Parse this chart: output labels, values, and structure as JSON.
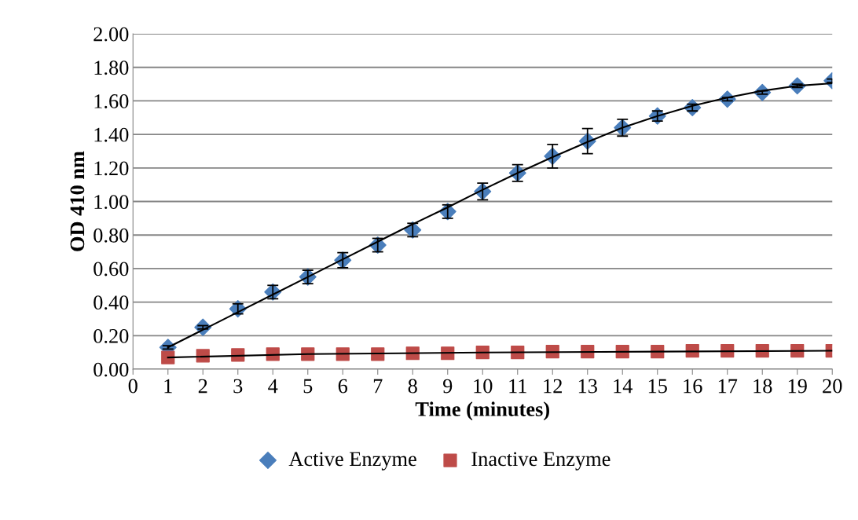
{
  "chart_data": {
    "type": "scatter",
    "xlabel": "Time (minutes)",
    "ylabel": "OD 410 nm",
    "x": [
      1,
      2,
      3,
      4,
      5,
      6,
      7,
      8,
      9,
      10,
      11,
      12,
      13,
      14,
      15,
      16,
      17,
      18,
      19,
      20
    ],
    "series": [
      {
        "name": "Active Enzyme",
        "color": "#4a7ebb",
        "marker": "diamond",
        "values": [
          0.13,
          0.25,
          0.36,
          0.46,
          0.55,
          0.65,
          0.74,
          0.83,
          0.94,
          1.06,
          1.17,
          1.27,
          1.36,
          1.44,
          1.51,
          1.56,
          1.61,
          1.65,
          1.69,
          1.72
        ],
        "errors": [
          0.01,
          0.01,
          0.03,
          0.04,
          0.04,
          0.045,
          0.04,
          0.04,
          0.04,
          0.05,
          0.05,
          0.07,
          0.075,
          0.05,
          0.03,
          0.02,
          0.01,
          0.01,
          0.01,
          0.01
        ]
      },
      {
        "name": "Inactive Enzyme",
        "color": "#be4b48",
        "marker": "square",
        "values": [
          0.07,
          0.08,
          0.085,
          0.09,
          0.09,
          0.09,
          0.09,
          0.095,
          0.095,
          0.1,
          0.1,
          0.105,
          0.105,
          0.105,
          0.105,
          0.11,
          0.11,
          0.11,
          0.11,
          0.11
        ]
      },
      {
        "type": "line",
        "color": "#000000",
        "x": [
          1,
          2,
          3,
          4,
          5,
          6,
          7,
          8,
          9,
          10,
          11,
          12,
          13,
          14,
          15,
          16,
          17,
          18,
          19,
          20
        ],
        "values": [
          0.13,
          0.235,
          0.34,
          0.445,
          0.55,
          0.655,
          0.76,
          0.865,
          0.965,
          1.07,
          1.17,
          1.265,
          1.355,
          1.44,
          1.51,
          1.57,
          1.62,
          1.66,
          1.69,
          1.705
        ]
      },
      {
        "type": "line",
        "color": "#000000",
        "x": [
          1,
          5,
          10,
          15,
          20
        ],
        "values": [
          0.07,
          0.09,
          0.1,
          0.105,
          0.11
        ]
      }
    ],
    "xlim": [
      0,
      20
    ],
    "xticks": [
      0,
      1,
      2,
      3,
      4,
      5,
      6,
      7,
      8,
      9,
      10,
      11,
      12,
      13,
      14,
      15,
      16,
      17,
      18,
      19,
      20
    ],
    "ylim": [
      0,
      2
    ],
    "yticks": [
      {
        "value": 0,
        "label": "0.00"
      },
      {
        "value": 0.2,
        "label": "0.20"
      },
      {
        "value": 0.4,
        "label": "0.40"
      },
      {
        "value": 0.6,
        "label": "0.60"
      },
      {
        "value": 0.8,
        "label": "0.80"
      },
      {
        "value": 1.0,
        "label": "1.00"
      },
      {
        "value": 1.2,
        "label": "1.20"
      },
      {
        "value": 1.4,
        "label": "1.40"
      },
      {
        "value": 1.6,
        "label": "1.60"
      },
      {
        "value": 1.8,
        "label": "1.80"
      },
      {
        "value": 2.0,
        "label": "2.00"
      }
    ],
    "grid": "y",
    "legend": "bottom"
  }
}
